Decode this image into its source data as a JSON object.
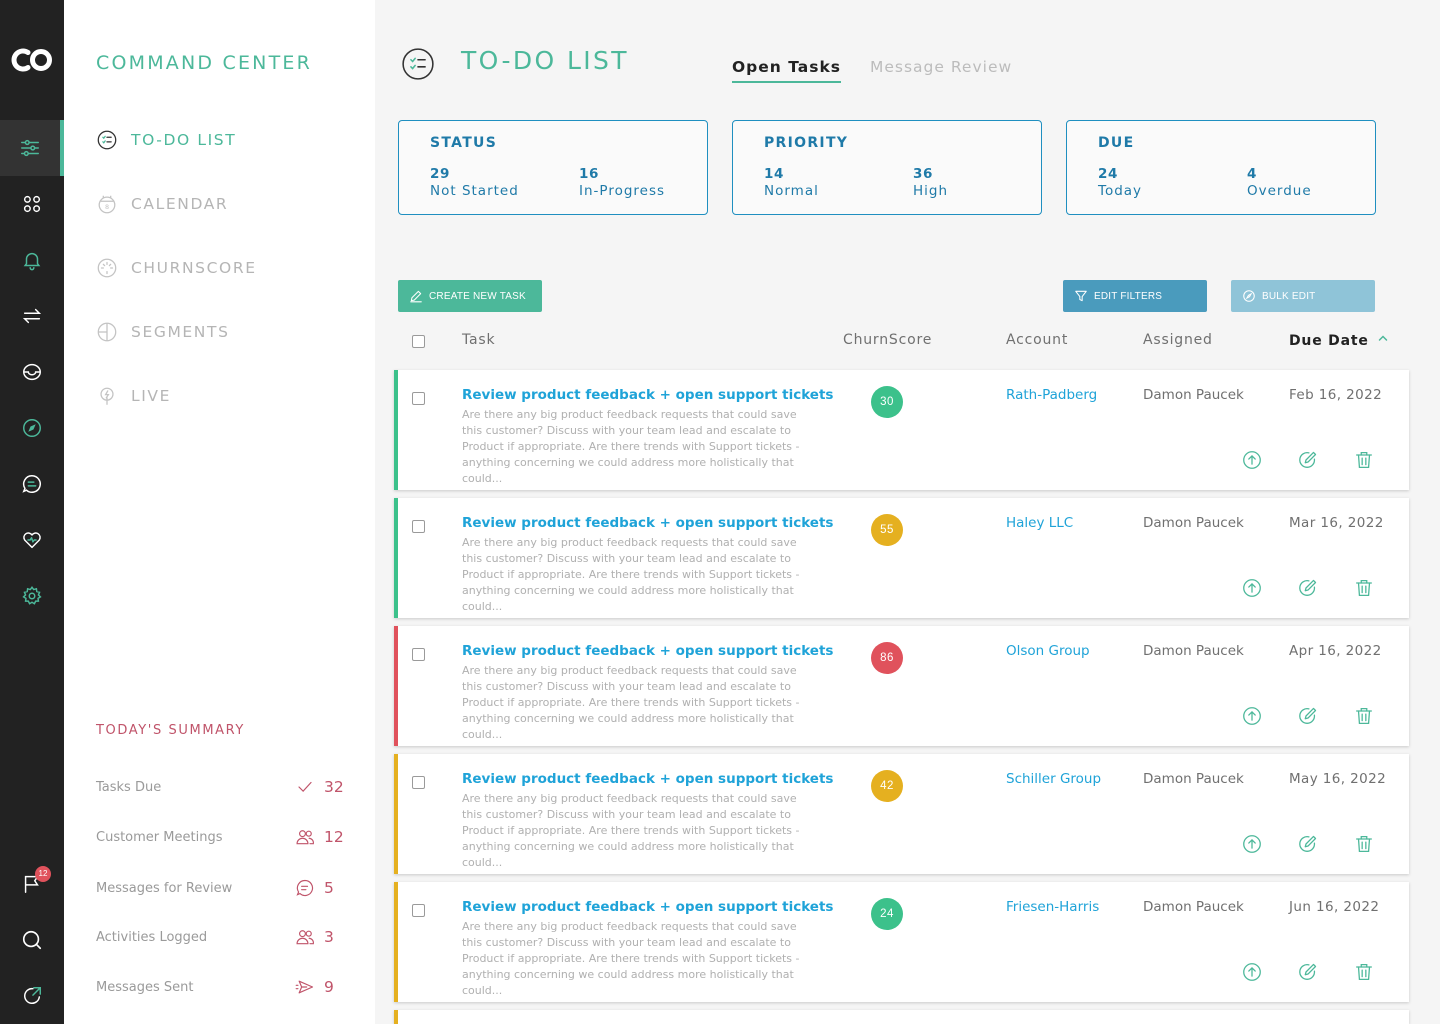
{
  "colors": {
    "accent": "#4cb89a",
    "link": "#1fa3d8",
    "card_border": "#1f8fc0",
    "summary": "#c0546a",
    "score_green": "#3cc18b",
    "score_yellow": "#e5b020",
    "score_red": "#e0525c"
  },
  "rail": {
    "logo": "co-logo",
    "items": [
      {
        "icon": "sliders-icon",
        "active": true
      },
      {
        "icon": "apps-grid-icon",
        "active": false
      },
      {
        "icon": "bell-icon",
        "active": false
      },
      {
        "icon": "transfer-arrows-icon",
        "active": false
      },
      {
        "icon": "inbox-icon",
        "active": false
      },
      {
        "icon": "compass-icon",
        "active": false
      },
      {
        "icon": "chat-list-icon",
        "active": false
      },
      {
        "icon": "heart-icon",
        "active": false
      },
      {
        "icon": "gear-icon",
        "active": false
      }
    ],
    "bottom_items": [
      {
        "icon": "flag-icon",
        "badge": "12"
      },
      {
        "icon": "search-icon"
      },
      {
        "icon": "refresh-out-icon"
      }
    ]
  },
  "subnav": {
    "title": "COMMAND CENTER",
    "items": [
      {
        "label": "TO-DO LIST",
        "icon": "todo-icon",
        "active": true
      },
      {
        "label": "CALENDAR",
        "icon": "calendar-icon",
        "active": false
      },
      {
        "label": "CHURNSCORE",
        "icon": "churnscore-icon",
        "active": false
      },
      {
        "label": "SEGMENTS",
        "icon": "segments-icon",
        "active": false
      },
      {
        "label": "LIVE",
        "icon": "live-icon",
        "active": false
      }
    ],
    "summary": {
      "title": "TODAY'S SUMMARY",
      "rows": [
        {
          "label": "Tasks Due",
          "icon": "check-icon",
          "value": "32"
        },
        {
          "label": "Customer Meetings",
          "icon": "users-icon",
          "value": "12"
        },
        {
          "label": "Messages for Review",
          "icon": "message-icon",
          "value": "5"
        },
        {
          "label": "Activities Logged",
          "icon": "users-icon",
          "value": "3"
        },
        {
          "label": "Messages Sent",
          "icon": "send-icon",
          "value": "9"
        }
      ]
    }
  },
  "main": {
    "title": "TO-DO LIST",
    "tabs": [
      {
        "label": "Open Tasks",
        "active": true
      },
      {
        "label": "Message Review",
        "active": false
      }
    ],
    "cards": [
      {
        "title": "STATUS",
        "items": [
          {
            "num": "29",
            "label": "Not Started"
          },
          {
            "num": "16",
            "label": "In-Progress"
          }
        ]
      },
      {
        "title": "PRIORITY",
        "items": [
          {
            "num": "14",
            "label": "Normal"
          },
          {
            "num": "36",
            "label": "High"
          }
        ]
      },
      {
        "title": "DUE",
        "items": [
          {
            "num": "24",
            "label": "Today"
          },
          {
            "num": "4",
            "label": "Overdue"
          }
        ]
      }
    ],
    "buttons": {
      "create": "CREATE NEW TASK",
      "filters": "EDIT FILTERS",
      "bulk": "BULK EDIT"
    },
    "table": {
      "headers": {
        "task": "Task",
        "churnscore": "ChurnScore",
        "account": "Account",
        "assigned": "Assigned",
        "due": "Due Date"
      },
      "rows": [
        {
          "title": "Review product feedback + open support tickets",
          "description": "Are there any big product feedback requests that could save this customer? Discuss with your team lead and escalate to Product if appropriate. Are there trends with Support tickets - anything concerning we could address more holistically that could...",
          "score": "30",
          "score_color": "green",
          "stripe": "green",
          "account": "Rath-Padberg",
          "assigned": "Damon Paucek",
          "due": "Feb 16, 2022"
        },
        {
          "title": "Review product feedback + open support tickets",
          "description": "Are there any big product feedback requests that could save this customer? Discuss with your team lead and escalate to Product if appropriate. Are there trends with Support tickets - anything concerning we could address more holistically that could...",
          "score": "55",
          "score_color": "yellow",
          "stripe": "green",
          "account": "Haley LLC",
          "assigned": "Damon Paucek",
          "due": "Mar 16, 2022"
        },
        {
          "title": "Review product feedback + open support tickets",
          "description": "Are there any big product feedback requests that could save this customer? Discuss with your team lead and escalate to Product if appropriate. Are there trends with Support tickets - anything concerning we could address more holistically that could...",
          "score": "86",
          "score_color": "red",
          "stripe": "red",
          "account": "Olson Group",
          "assigned": "Damon Paucek",
          "due": "Apr 16, 2022"
        },
        {
          "title": "Review product feedback + open support tickets",
          "description": "Are there any big product feedback requests that could save this customer? Discuss with your team lead and escalate to Product if appropriate. Are there trends with Support tickets - anything concerning we could address more holistically that could...",
          "score": "42",
          "score_color": "yellow",
          "stripe": "yellow",
          "account": "Schiller Group",
          "assigned": "Damon Paucek",
          "due": "May 16, 2022"
        },
        {
          "title": "Review product feedback + open support tickets",
          "description": "Are there any big product feedback requests that could save this customer? Discuss with your team lead and escalate to Product if appropriate. Are there trends with Support tickets - anything concerning we could address more holistically that could...",
          "score": "24",
          "score_color": "green",
          "stripe": "yellow",
          "account": "Friesen-Harris",
          "assigned": "Damon Paucek",
          "due": "Jun 16, 2022"
        }
      ],
      "row_actions": [
        "upload-icon",
        "edit-icon",
        "trash-icon"
      ]
    }
  }
}
